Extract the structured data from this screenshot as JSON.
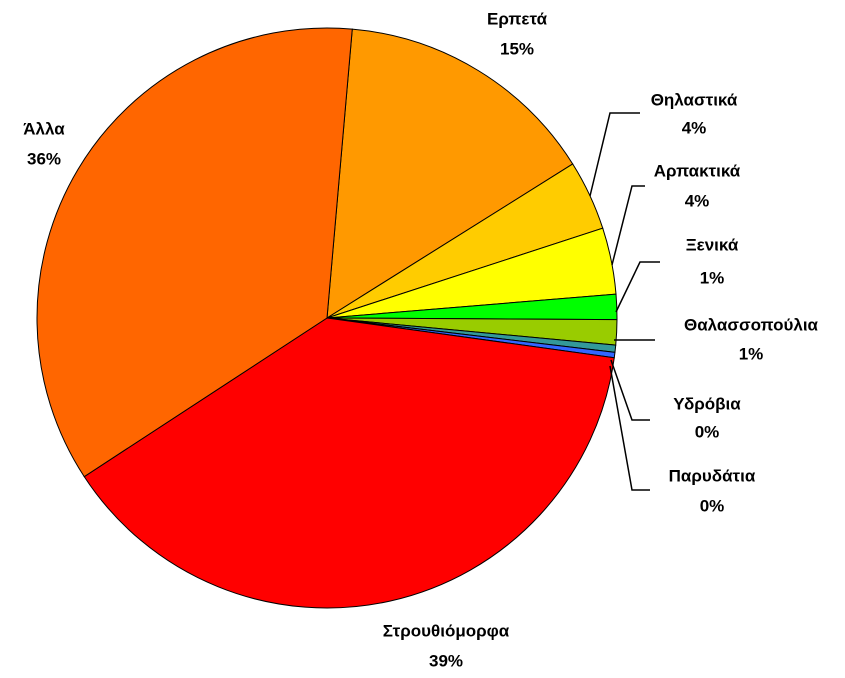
{
  "chart_data": {
    "type": "pie",
    "categories": [
      "Ερπετά",
      "Θηλαστικά",
      "Αρπακτικά",
      "Ξενικά",
      "Θαλασσοπούλια",
      "Υδρόβια",
      "Παρυδάτια",
      "Στρουθιόμορφα",
      "Άλλα"
    ],
    "values": [
      14.7,
      3.9,
      3.7,
      1.4,
      1.4,
      0.4,
      0.3,
      38.6,
      35.6
    ],
    "value_labels": [
      "15%",
      "4%",
      "4%",
      "1%",
      "1%",
      "0%",
      "0%",
      "39%",
      "36%"
    ],
    "colors": [
      "#ff9900",
      "#ffcc00",
      "#ffff00",
      "#00ff00",
      "#99cc00",
      "#339999",
      "#3366ff",
      "#ff0000",
      "#ff6600"
    ]
  }
}
